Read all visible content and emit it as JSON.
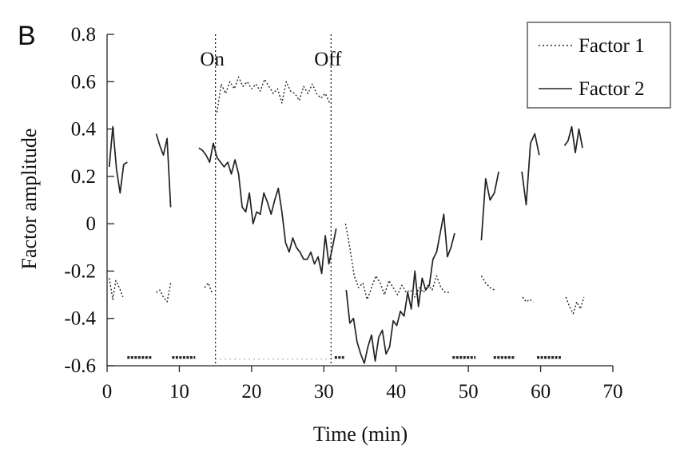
{
  "panel_label": "B",
  "chart_data": {
    "type": "line",
    "title": "",
    "xlabel": "Time (min)",
    "ylabel": "Factor amplitude",
    "xlim": [
      0,
      70
    ],
    "ylim": [
      -0.6,
      0.8
    ],
    "xticks": [
      0,
      10,
      20,
      30,
      40,
      50,
      60,
      70
    ],
    "xtick_labels": [
      "0",
      "10",
      "20",
      "30",
      "40",
      "50",
      "60",
      "70"
    ],
    "yticks": [
      0.8,
      0.6,
      0.4,
      0.2,
      0,
      -0.2,
      -0.4,
      -0.6
    ],
    "ytick_labels": [
      "0.8",
      "0.6",
      "0.4",
      "0.2",
      "0",
      "-0.2",
      "-0.4",
      "-0.6"
    ],
    "grid": false,
    "legend_position": "top-right",
    "annotations": [
      {
        "text": "On",
        "x": 15
      },
      {
        "text": "Off",
        "x": 31
      }
    ],
    "event_lines": [
      15,
      31
    ],
    "series": [
      {
        "name": "Factor 1",
        "style": "dotted",
        "color": "#222222",
        "segments": [
          [
            [
              0.3,
              -0.23
            ],
            [
              0.8,
              -0.32
            ],
            [
              1.2,
              -0.24
            ],
            [
              1.7,
              -0.27
            ],
            [
              2.2,
              -0.31
            ]
          ],
          [
            [
              6.8,
              -0.29
            ],
            [
              7.3,
              -0.28
            ],
            [
              7.8,
              -0.31
            ],
            [
              8.3,
              -0.33
            ],
            [
              8.8,
              -0.25
            ]
          ],
          [
            [
              13.5,
              -0.27
            ],
            [
              14.0,
              -0.25
            ],
            [
              14.5,
              -0.29
            ]
          ],
          [
            [
              15.2,
              0.47
            ],
            [
              15.8,
              0.59
            ],
            [
              16.4,
              0.55
            ],
            [
              17.0,
              0.6
            ],
            [
              17.6,
              0.57
            ],
            [
              18.2,
              0.62
            ],
            [
              18.8,
              0.58
            ],
            [
              19.4,
              0.6
            ],
            [
              20.0,
              0.57
            ],
            [
              20.6,
              0.59
            ],
            [
              21.2,
              0.56
            ],
            [
              21.8,
              0.61
            ],
            [
              22.4,
              0.58
            ],
            [
              23.0,
              0.55
            ],
            [
              23.6,
              0.57
            ],
            [
              24.2,
              0.51
            ],
            [
              24.8,
              0.6
            ],
            [
              25.4,
              0.56
            ],
            [
              26.0,
              0.55
            ],
            [
              26.6,
              0.52
            ],
            [
              27.2,
              0.58
            ],
            [
              27.8,
              0.55
            ],
            [
              28.4,
              0.59
            ],
            [
              29.0,
              0.55
            ],
            [
              29.6,
              0.53
            ],
            [
              30.2,
              0.55
            ],
            [
              30.8,
              0.51
            ]
          ],
          [
            [
              33.0,
              0.0
            ],
            [
              33.6,
              -0.1
            ],
            [
              34.2,
              -0.22
            ],
            [
              34.8,
              -0.27
            ],
            [
              35.4,
              -0.25
            ],
            [
              36.0,
              -0.32
            ],
            [
              36.6,
              -0.27
            ],
            [
              37.2,
              -0.22
            ],
            [
              37.8,
              -0.25
            ],
            [
              38.4,
              -0.3
            ],
            [
              39.0,
              -0.24
            ],
            [
              39.6,
              -0.27
            ],
            [
              40.2,
              -0.3
            ],
            [
              40.8,
              -0.26
            ],
            [
              41.4,
              -0.29
            ],
            [
              42.0,
              -0.28
            ],
            [
              42.6,
              -0.31
            ],
            [
              43.2,
              -0.27
            ],
            [
              43.8,
              -0.29
            ],
            [
              44.4,
              -0.26
            ],
            [
              45.0,
              -0.28
            ],
            [
              45.6,
              -0.22
            ],
            [
              46.2,
              -0.27
            ],
            [
              46.8,
              -0.29
            ],
            [
              47.4,
              -0.29
            ]
          ],
          [
            [
              51.8,
              -0.22
            ],
            [
              52.4,
              -0.25
            ],
            [
              53.0,
              -0.27
            ],
            [
              53.6,
              -0.28
            ]
          ],
          [
            [
              57.5,
              -0.31
            ],
            [
              58.0,
              -0.33
            ],
            [
              58.5,
              -0.32
            ],
            [
              59.0,
              -0.33
            ]
          ],
          [
            [
              63.5,
              -0.31
            ],
            [
              64.0,
              -0.35
            ],
            [
              64.5,
              -0.38
            ],
            [
              65.0,
              -0.33
            ],
            [
              65.5,
              -0.36
            ],
            [
              66.0,
              -0.31
            ]
          ]
        ]
      },
      {
        "name": "Factor 2",
        "style": "solid",
        "color": "#222222",
        "segments": [
          [
            [
              0.3,
              0.24
            ],
            [
              0.8,
              0.41
            ],
            [
              1.3,
              0.23
            ],
            [
              1.8,
              0.13
            ],
            [
              2.3,
              0.25
            ],
            [
              2.8,
              0.26
            ]
          ],
          [
            [
              6.8,
              0.38
            ],
            [
              7.3,
              0.33
            ],
            [
              7.8,
              0.29
            ],
            [
              8.3,
              0.36
            ],
            [
              8.8,
              0.07
            ]
          ],
          [
            [
              12.7,
              0.32
            ],
            [
              13.2,
              0.31
            ],
            [
              13.7,
              0.29
            ],
            [
              14.2,
              0.26
            ],
            [
              14.7,
              0.34
            ],
            [
              15.2,
              0.28
            ],
            [
              15.7,
              0.26
            ],
            [
              16.2,
              0.24
            ],
            [
              16.7,
              0.26
            ],
            [
              17.2,
              0.21
            ],
            [
              17.7,
              0.27
            ],
            [
              18.2,
              0.21
            ],
            [
              18.7,
              0.07
            ],
            [
              19.2,
              0.05
            ],
            [
              19.7,
              0.13
            ],
            [
              20.2,
              0.0
            ],
            [
              20.7,
              0.05
            ],
            [
              21.2,
              0.04
            ],
            [
              21.7,
              0.13
            ],
            [
              22.2,
              0.09
            ],
            [
              22.7,
              0.04
            ],
            [
              23.2,
              0.1
            ],
            [
              23.7,
              0.15
            ],
            [
              24.2,
              0.05
            ],
            [
              24.7,
              -0.08
            ],
            [
              25.2,
              -0.12
            ],
            [
              25.7,
              -0.06
            ],
            [
              26.2,
              -0.1
            ],
            [
              26.7,
              -0.12
            ],
            [
              27.2,
              -0.15
            ],
            [
              27.7,
              -0.15
            ],
            [
              28.2,
              -0.12
            ],
            [
              28.7,
              -0.17
            ],
            [
              29.2,
              -0.14
            ],
            [
              29.7,
              -0.21
            ],
            [
              30.2,
              -0.05
            ],
            [
              30.7,
              -0.17
            ],
            [
              31.2,
              -0.1
            ],
            [
              31.7,
              -0.02
            ]
          ],
          [
            [
              33.1,
              -0.28
            ],
            [
              33.6,
              -0.42
            ],
            [
              34.1,
              -0.4
            ],
            [
              34.6,
              -0.5
            ],
            [
              35.1,
              -0.55
            ],
            [
              35.6,
              -0.59
            ],
            [
              36.1,
              -0.52
            ],
            [
              36.6,
              -0.47
            ],
            [
              37.1,
              -0.58
            ],
            [
              37.6,
              -0.48
            ],
            [
              38.1,
              -0.45
            ],
            [
              38.6,
              -0.55
            ],
            [
              39.1,
              -0.52
            ],
            [
              39.6,
              -0.41
            ],
            [
              40.1,
              -0.43
            ],
            [
              40.6,
              -0.37
            ],
            [
              41.1,
              -0.39
            ],
            [
              41.6,
              -0.29
            ],
            [
              42.1,
              -0.36
            ],
            [
              42.6,
              -0.2
            ],
            [
              43.1,
              -0.35
            ],
            [
              43.6,
              -0.23
            ],
            [
              44.1,
              -0.28
            ],
            [
              44.6,
              -0.26
            ],
            [
              45.1,
              -0.15
            ],
            [
              45.6,
              -0.12
            ],
            [
              46.1,
              -0.04
            ],
            [
              46.6,
              0.04
            ],
            [
              47.1,
              -0.14
            ],
            [
              47.6,
              -0.1
            ],
            [
              48.1,
              -0.04
            ]
          ],
          [
            [
              51.8,
              -0.07
            ],
            [
              52.4,
              0.19
            ],
            [
              53.0,
              0.1
            ],
            [
              53.6,
              0.13
            ],
            [
              54.2,
              0.22
            ]
          ],
          [
            [
              57.4,
              0.22
            ],
            [
              58.0,
              0.08
            ],
            [
              58.6,
              0.34
            ],
            [
              59.2,
              0.38
            ],
            [
              59.8,
              0.29
            ]
          ],
          [
            [
              63.3,
              0.33
            ],
            [
              63.8,
              0.35
            ],
            [
              64.3,
              0.41
            ],
            [
              64.8,
              0.3
            ],
            [
              65.3,
              0.4
            ],
            [
              65.8,
              0.32
            ]
          ]
        ]
      }
    ],
    "baseline_markers": {
      "y": -0.565,
      "dashed_spans": [
        [
          2.8,
          6.2
        ],
        [
          9.0,
          12.2
        ],
        [
          31.5,
          32.8
        ],
        [
          47.8,
          51.0
        ],
        [
          53.5,
          56.5
        ],
        [
          59.5,
          62.8
        ]
      ],
      "dotted_spans": [
        [
          15.0,
          31.0
        ]
      ]
    }
  }
}
